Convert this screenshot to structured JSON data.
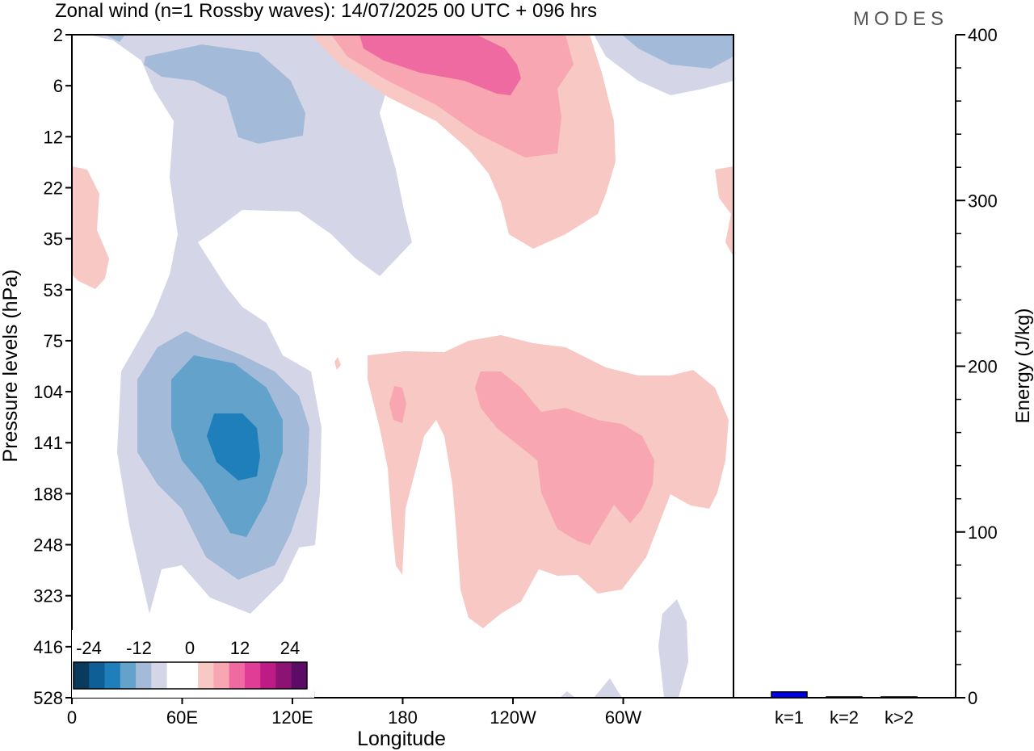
{
  "title": "Zonal wind (n=1 Rossby waves):  14/07/2025  00 UTC  + 096 hrs",
  "brand": "MODES",
  "colors": {
    "neg4": "#0a3a5c",
    "neg3": "#0d5f96",
    "neg2": "#1f7fba",
    "neg1": "#63a2cb",
    "neg0": "#a3bbd9",
    "negw": "#d4d6e8",
    "zero": "#ffffff",
    "posw": "#f8c8c4",
    "pos0": "#f7a6b2",
    "pos1": "#ef6aa0",
    "pos2": "#e03d97",
    "pos3": "#bd1b85",
    "pos4": "#8c1273",
    "pos5": "#5c0b66",
    "bar": "#0000ee"
  },
  "chart_data": [
    {
      "type": "heatmap",
      "xlabel": "Longitude",
      "ylabel": "Pressure levels (hPa)",
      "x_tick_labels": [
        "0",
        "60E",
        "120E",
        "180",
        "120W",
        "60W"
      ],
      "y_tick_labels": [
        "2",
        "6",
        "12",
        "22",
        "35",
        "53",
        "75",
        "104",
        "141",
        "188",
        "248",
        "323",
        "416",
        "528"
      ],
      "colorbar_labels": [
        "-24",
        "-12",
        "0",
        "12",
        "24"
      ],
      "colorbar_levels": [
        -30,
        -24,
        -18,
        -12,
        -6,
        -3,
        3,
        6,
        12,
        18,
        24,
        30
      ],
      "features": [
        {
          "sign": "negative",
          "peak": -24,
          "lon": 85,
          "level": 141
        },
        {
          "sign": "negative",
          "peak": -8,
          "lon": 75,
          "level": 6
        },
        {
          "sign": "positive",
          "peak": 18,
          "lon": 215,
          "level": 2
        },
        {
          "sign": "positive",
          "peak": 12,
          "lon": 265,
          "level": 141
        },
        {
          "sign": "positive",
          "peak": 6,
          "lon": 10,
          "level": 35
        }
      ]
    },
    {
      "type": "bar",
      "categories": [
        "k=1",
        "k=2",
        "k>2"
      ],
      "values": [
        3.5,
        0.5,
        0.5
      ],
      "ylabel": "Energy (J/kg)",
      "ylim": [
        0,
        400
      ],
      "y_tick_labels": [
        "0",
        "100",
        "200",
        "300",
        "400"
      ]
    }
  ]
}
